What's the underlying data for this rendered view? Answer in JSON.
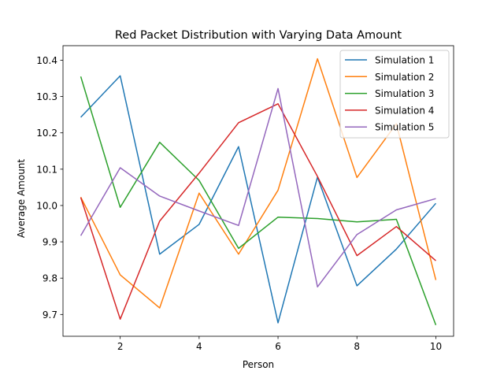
{
  "chart_data": {
    "type": "line",
    "title": "Red Packet Distribution with Varying Data Amount",
    "xlabel": "Person",
    "ylabel": "Average Amount",
    "xlim": [
      0.55,
      10.45
    ],
    "ylim": [
      9.64,
      10.44
    ],
    "x": [
      1,
      2,
      3,
      4,
      5,
      6,
      7,
      8,
      9,
      10
    ],
    "x_ticks": [
      2,
      4,
      6,
      8,
      10
    ],
    "y_ticks": [
      9.7,
      9.8,
      9.9,
      10.0,
      10.1,
      10.2,
      10.3,
      10.4
    ],
    "grid": false,
    "legend_position": "upper right",
    "series": [
      {
        "name": "Simulation 1",
        "color": "#1f77b4",
        "values": [
          10.243,
          10.357,
          9.866,
          9.948,
          10.162,
          9.677,
          10.078,
          9.779,
          9.88,
          10.006
        ]
      },
      {
        "name": "Simulation 2",
        "color": "#ff7f0e",
        "values": [
          10.023,
          9.809,
          9.718,
          10.034,
          9.866,
          10.042,
          10.404,
          10.077,
          10.225,
          9.795
        ]
      },
      {
        "name": "Simulation 3",
        "color": "#2ca02c",
        "values": [
          10.355,
          9.995,
          10.174,
          10.069,
          9.882,
          9.968,
          9.964,
          9.955,
          9.962,
          9.671
        ]
      },
      {
        "name": "Simulation 4",
        "color": "#d62728",
        "values": [
          10.022,
          9.687,
          9.957,
          10.089,
          10.228,
          10.28,
          10.08,
          9.862,
          9.942,
          9.848
        ]
      },
      {
        "name": "Simulation 5",
        "color": "#9467bd",
        "values": [
          9.917,
          10.104,
          10.026,
          9.985,
          9.945,
          10.322,
          9.776,
          9.92,
          9.988,
          10.019
        ]
      }
    ]
  }
}
